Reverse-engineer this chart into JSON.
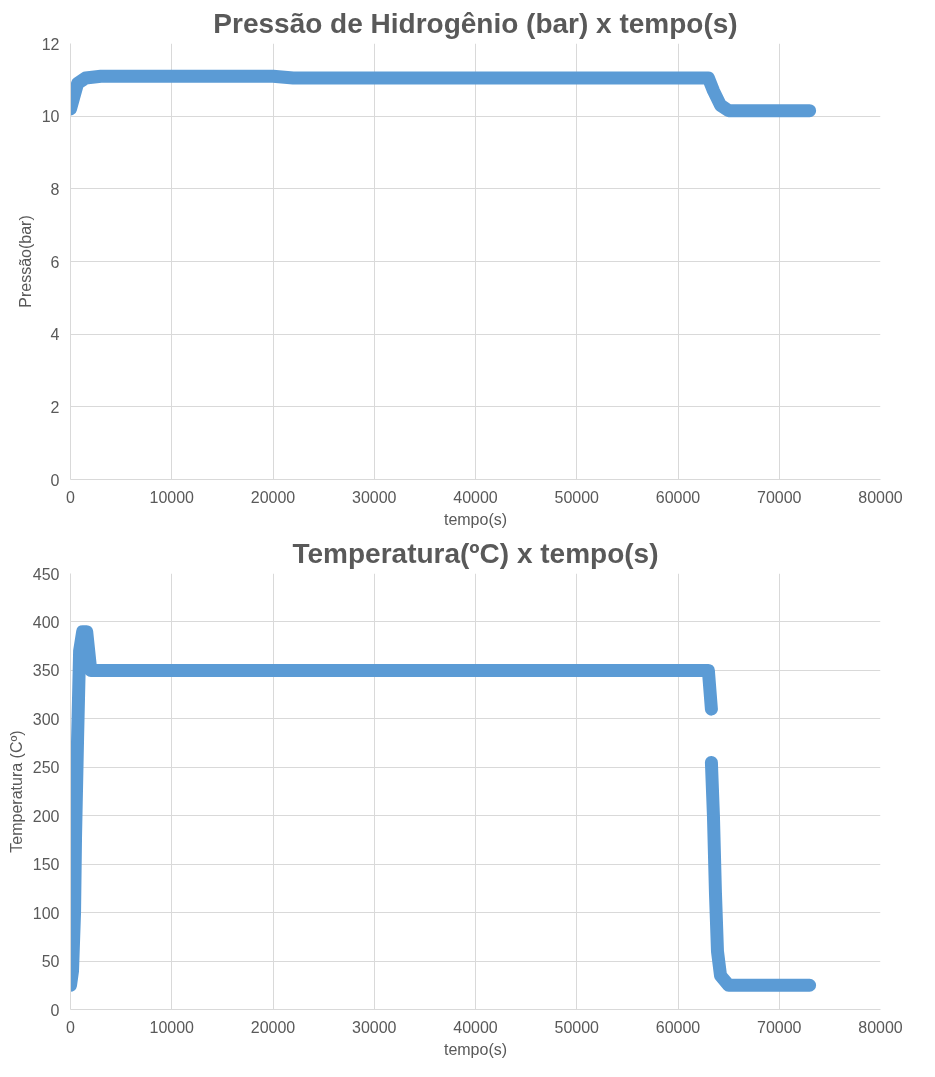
{
  "chart_data": [
    {
      "type": "line",
      "title": "Pressão de Hidrogênio (bar) x tempo(s)",
      "xlabel": "tempo(s)",
      "ylabel": "Pressão(bar)",
      "grid": true,
      "line_style": "solid",
      "xlim": [
        0,
        80000
      ],
      "xticks": [
        0,
        10000,
        20000,
        30000,
        40000,
        50000,
        60000,
        70000,
        80000
      ],
      "ylim": [
        0,
        12
      ],
      "yticks": [
        0,
        2,
        4,
        6,
        8,
        10,
        12
      ],
      "series": [
        {
          "color": "#5b9bd5",
          "x": [
            0,
            300,
            700,
            1500,
            3000,
            20000,
            22000,
            63000,
            63500,
            64200,
            65000,
            73000
          ],
          "values": [
            10.2,
            10.5,
            10.9,
            11.05,
            11.1,
            11.1,
            11.05,
            11.05,
            10.7,
            10.3,
            10.15,
            10.15
          ]
        }
      ]
    },
    {
      "type": "line",
      "title": "Temperatura(ºC) x tempo(s)",
      "xlabel": "tempo(s)",
      "ylabel": "Temperatura (Cº)",
      "grid": true,
      "line_style": "solid",
      "xlim": [
        0,
        80000
      ],
      "xticks": [
        0,
        10000,
        20000,
        30000,
        40000,
        50000,
        60000,
        70000,
        80000
      ],
      "ylim": [
        0,
        450
      ],
      "yticks": [
        0,
        50,
        100,
        150,
        200,
        250,
        300,
        350,
        400,
        450
      ],
      "series": [
        {
          "color": "#5b9bd5",
          "x": [
            0,
            200,
            400,
            500,
            700,
            900,
            1200,
            1600,
            2000,
            63000,
            63300
          ],
          "values": [
            25,
            40,
            100,
            180,
            280,
            370,
            390,
            390,
            350,
            350,
            310
          ]
        },
        {
          "color": "#5b9bd5",
          "x": [
            63300,
            63500,
            63700,
            63900,
            64200,
            65000,
            73000
          ],
          "values": [
            255,
            200,
            120,
            60,
            35,
            25,
            25
          ]
        }
      ]
    }
  ]
}
